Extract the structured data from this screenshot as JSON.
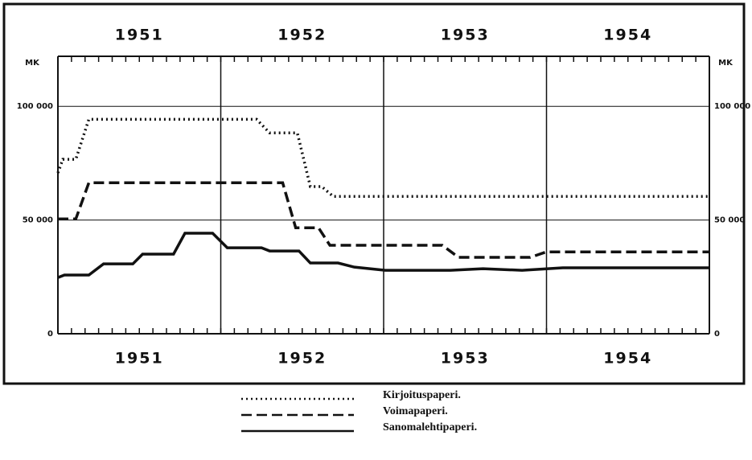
{
  "chart_data": {
    "type": "line",
    "y_unit_label": "MK",
    "xlim": [
      1951,
      1955
    ],
    "xticks": [
      {
        "value": 1951.5,
        "label": "1951"
      },
      {
        "value": 1952.5,
        "label": "1952"
      },
      {
        "value": 1953.5,
        "label": "1953"
      },
      {
        "value": 1954.5,
        "label": "1954"
      }
    ],
    "year_dividers": [
      1952,
      1953,
      1954
    ],
    "ylim": [
      0,
      122000
    ],
    "yticks": [
      0,
      {
        "value": 50000,
        "label": "50 000"
      },
      {
        "value": 100000,
        "label": "100 000"
      }
    ],
    "grid": true,
    "series": [
      {
        "name": "Kirjoituspaperi.",
        "color": "#111",
        "style": "dotted",
        "x": [
          1951.0,
          1951.03,
          1951.11,
          1951.19,
          1951.99,
          1952.22,
          1952.3,
          1952.47,
          1952.55,
          1952.62,
          1952.69,
          1955.0
        ],
        "values": [
          70700,
          76700,
          76700,
          94300,
          94300,
          94300,
          88300,
          88300,
          64700,
          64700,
          60400,
          60400
        ]
      },
      {
        "name": "Voimapaperi.",
        "color": "#111",
        "style": "dashed",
        "x": [
          1951.0,
          1951.11,
          1951.19,
          1952.38,
          1952.46,
          1952.6,
          1952.67,
          1953.36,
          1953.46,
          1953.9,
          1954.0,
          1955.0
        ],
        "values": [
          50500,
          50500,
          66400,
          66400,
          46600,
          46600,
          38900,
          38900,
          33600,
          33600,
          36000,
          36000
        ]
      },
      {
        "name": "Sanomalehtipaperi.",
        "color": "#111",
        "style": "solid",
        "x": [
          1951.0,
          1951.04,
          1951.19,
          1951.28,
          1951.46,
          1951.52,
          1951.71,
          1951.78,
          1951.95,
          1952.04,
          1952.25,
          1952.3,
          1952.48,
          1952.55,
          1952.72,
          1952.82,
          1953.01,
          1953.41,
          1953.61,
          1953.85,
          1954.1,
          1955.0
        ],
        "values": [
          24700,
          25800,
          25800,
          30700,
          30700,
          35000,
          35000,
          44200,
          44200,
          37800,
          37800,
          36400,
          36400,
          31100,
          31100,
          29300,
          27900,
          27900,
          28600,
          27900,
          29000,
          29000
        ]
      }
    ]
  }
}
